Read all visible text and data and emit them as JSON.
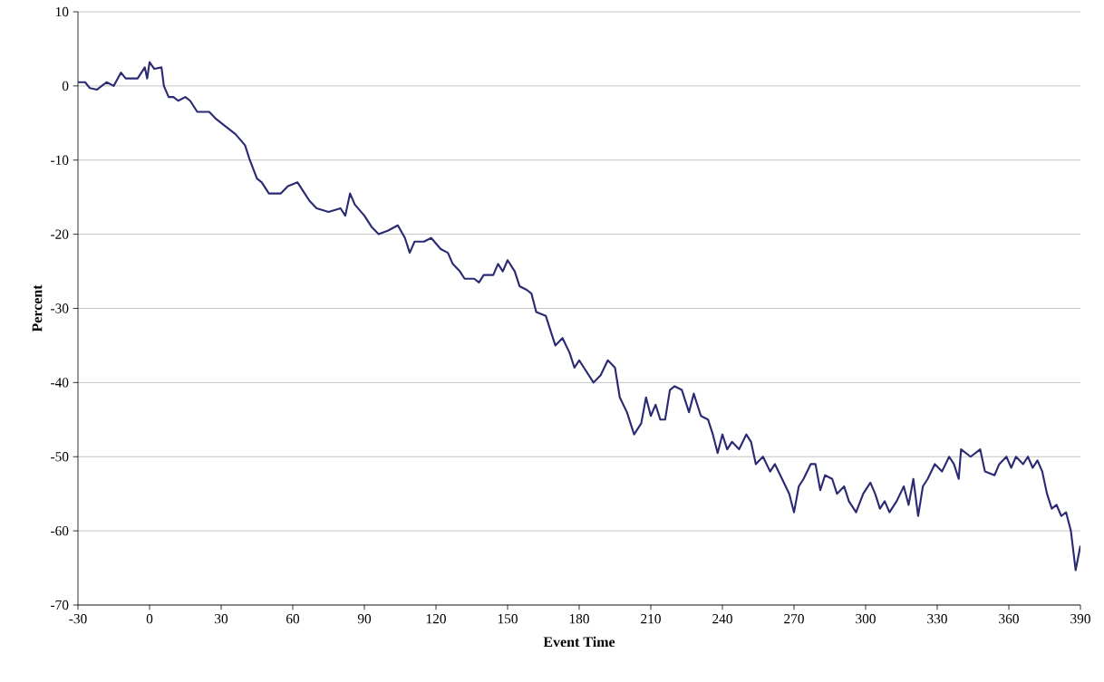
{
  "chart_data": {
    "type": "line",
    "xlabel": "Event Time",
    "ylabel": "Percent",
    "xlim": [
      -30,
      390
    ],
    "xticks": [
      -30,
      0,
      30,
      60,
      90,
      120,
      150,
      180,
      210,
      240,
      270,
      300,
      330,
      360,
      390
    ],
    "ylim": [
      -70,
      10
    ],
    "yticks": [
      -70,
      -60,
      -50,
      -40,
      -30,
      -20,
      -10,
      0,
      10
    ],
    "grid": "y",
    "marker": "none",
    "line_style": "solid",
    "series": [
      {
        "color": "#2b2a73",
        "x": [
          -30,
          -27,
          -25,
          -22,
          -18,
          -15,
          -12,
          -10,
          -5,
          -2,
          -1,
          0,
          2,
          5,
          6,
          8,
          10,
          12,
          15,
          17,
          20,
          25,
          28,
          32,
          36,
          40,
          42,
          45,
          47,
          50,
          55,
          58,
          62,
          65,
          67,
          70,
          75,
          80,
          82,
          84,
          86,
          90,
          93,
          96,
          100,
          104,
          107,
          109,
          111,
          115,
          118,
          122,
          125,
          127,
          130,
          132,
          136,
          138,
          140,
          144,
          146,
          148,
          150,
          153,
          155,
          158,
          160,
          162,
          166,
          168,
          170,
          173,
          176,
          178,
          180,
          182,
          186,
          189,
          192,
          195,
          197,
          200,
          203,
          206,
          208,
          210,
          212,
          214,
          216,
          218,
          220,
          223,
          226,
          228,
          231,
          234,
          236,
          238,
          240,
          242,
          244,
          247,
          250,
          252,
          254,
          257,
          260,
          262,
          265,
          268,
          270,
          272,
          274,
          277,
          279,
          281,
          283,
          286,
          288,
          291,
          293,
          296,
          299,
          302,
          304,
          306,
          308,
          310,
          313,
          316,
          318,
          320,
          322,
          324,
          326,
          329,
          332,
          335,
          337,
          339,
          340,
          344,
          348,
          350,
          354,
          356,
          359,
          361,
          363,
          366,
          368,
          370,
          372,
          374,
          376,
          378,
          380,
          382,
          384,
          386,
          388,
          390
        ],
        "values": [
          0.5,
          0.5,
          -0.3,
          -0.5,
          0.5,
          0,
          1.8,
          1,
          1,
          2.5,
          1,
          3.2,
          2.3,
          2.5,
          0,
          -1.5,
          -1.5,
          -2,
          -1.5,
          -2,
          -3.5,
          -3.5,
          -4.5,
          -5.5,
          -6.5,
          -8,
          -10,
          -12.5,
          -13,
          -14.5,
          -14.5,
          -13.5,
          -13,
          -14.5,
          -15.5,
          -16.5,
          -17,
          -16.5,
          -17.5,
          -14.5,
          -16,
          -17.5,
          -19,
          -20,
          -19.5,
          -18.8,
          -20.5,
          -22.5,
          -21,
          -21,
          -20.5,
          -22,
          -22.5,
          -24,
          -25,
          -26,
          -26,
          -26.5,
          -25.5,
          -25.5,
          -24,
          -25,
          -23.5,
          -25,
          -27,
          -27.5,
          -28,
          -30.5,
          -31,
          -33,
          -35,
          -34,
          -36,
          -38,
          -37,
          -38,
          -40,
          -39,
          -37,
          -38,
          -42,
          -44,
          -47,
          -45.5,
          -42,
          -44.5,
          -43,
          -45,
          -45,
          -41,
          -40.5,
          -41,
          -44,
          -41.5,
          -44.5,
          -45,
          -47,
          -49.5,
          -47,
          -49,
          -48,
          -49,
          -47,
          -48,
          -51,
          -50,
          -52,
          -51,
          -53,
          -55,
          -57.5,
          -54,
          -53,
          -51,
          -51,
          -54.5,
          -52.5,
          -53,
          -55,
          -54,
          -56,
          -57.5,
          -55,
          -53.5,
          -55,
          -57,
          -56,
          -57.5,
          -56,
          -54,
          -56.5,
          -53,
          -58,
          -54,
          -53,
          -51,
          -52,
          -50,
          -51,
          -53,
          -49,
          -50,
          -49,
          -52,
          -52.5,
          -51,
          -50,
          -51.5,
          -50,
          -51,
          -50,
          -51.5,
          -50.5,
          -52,
          -55,
          -57,
          -56.5,
          -58,
          -57.5,
          -60,
          -65.3,
          -62
        ]
      }
    ]
  }
}
